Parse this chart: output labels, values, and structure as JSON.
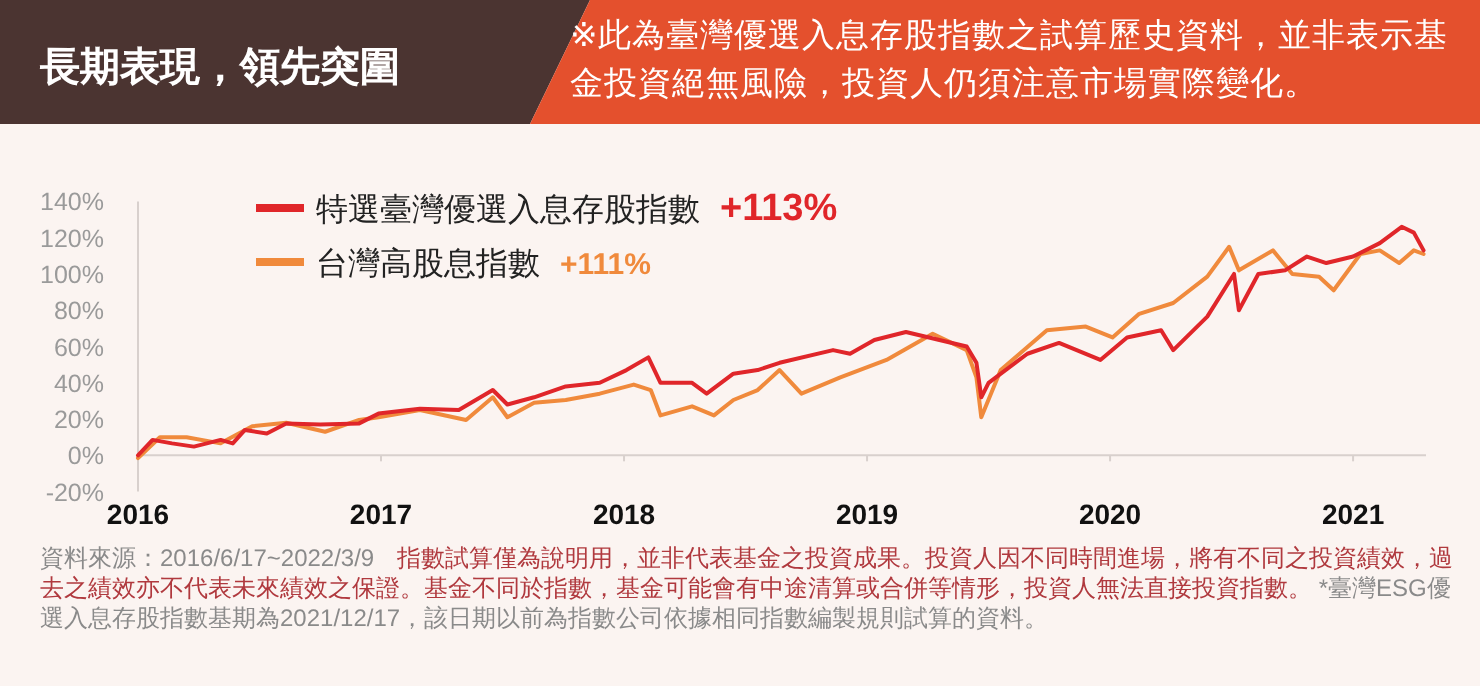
{
  "chart_data": {
    "type": "line",
    "title": "長期表現，領先突圍",
    "subtitle": "※此為臺灣優選入息存股指數之試算歷史資料，並非表示基金投資絕無風險，投資人仍須注意市場實際變化。",
    "annotations": [
      "+113%",
      "+111%",
      "資料來源：2016/6/17~2022/3/9",
      "指數試算僅為說明用，並非代表基金之投資成果。投資人因不同時間進場，將有不同之投資績效，過去之績效亦不代表未來績效之保證。基金不同於指數，基金可能會有中途清算或合併等情形，投資人無法直接投資指數。",
      "*臺灣ESG優選入息存股指數基期為2021/12/17，該日期以前為指數公司依據相同指數編製規則試算的資料。"
    ],
    "xlim": [
      2016,
      2021.3
    ],
    "xticks": [
      2016,
      2017,
      2018,
      2019,
      2020,
      2021
    ],
    "ylim": [
      -20,
      140
    ],
    "yticks": [
      {
        "value": -20,
        "label": "-20%"
      },
      {
        "value": 0,
        "label": "0%"
      },
      {
        "value": 20,
        "label": "20%"
      },
      {
        "value": 40,
        "label": "40%"
      },
      {
        "value": 60,
        "label": "60%"
      },
      {
        "value": 80,
        "label": "80%"
      },
      {
        "value": 100,
        "label": "100%"
      },
      {
        "value": 120,
        "label": "120%"
      },
      {
        "value": 140,
        "label": "140%"
      }
    ],
    "legend": "top left",
    "series": [
      {
        "name": "特選臺灣優選入息存股指數",
        "color": "#e0262a",
        "x": [
          2016.0,
          2016.06,
          2016.14,
          2016.23,
          2016.34,
          2016.39,
          2016.44,
          2016.53,
          2016.61,
          2016.75,
          2016.91,
          2016.99,
          2017.16,
          2017.32,
          2017.46,
          2017.52,
          2017.63,
          2017.76,
          2017.9,
          2018.01,
          2018.1,
          2018.15,
          2018.28,
          2018.34,
          2018.45,
          2018.55,
          2018.64,
          2018.86,
          2018.93,
          2019.03,
          2019.16,
          2019.41,
          2019.45,
          2019.47,
          2019.5,
          2019.66,
          2019.79,
          2019.96,
          2020.07,
          2020.21,
          2020.26,
          2020.4,
          2020.51,
          2020.53,
          2020.61,
          2020.72,
          2020.81,
          2020.89,
          2021.0,
          2021.11,
          2021.2,
          2021.25,
          2021.29
        ],
        "values": [
          0,
          8.5,
          6.6,
          4.8,
          8.5,
          6.6,
          14,
          12,
          17.6,
          17,
          17.6,
          23,
          25.7,
          25,
          36,
          28,
          32,
          38,
          40,
          47,
          54,
          40,
          40,
          34,
          45,
          47,
          51,
          58,
          56,
          63.6,
          68,
          60,
          51,
          32,
          40,
          56,
          62,
          52.6,
          65,
          69,
          58,
          76.5,
          100,
          80,
          100,
          102,
          109.6,
          106,
          109.6,
          117,
          126,
          122.8,
          113
        ]
      },
      {
        "name": "台灣高股息指數",
        "color": "#f08a3c",
        "x": [
          2016.0,
          2016.09,
          2016.2,
          2016.34,
          2016.47,
          2016.61,
          2016.77,
          2016.91,
          2016.99,
          2017.16,
          2017.35,
          2017.46,
          2017.52,
          2017.63,
          2017.76,
          2017.9,
          2018.04,
          2018.11,
          2018.15,
          2018.28,
          2018.37,
          2018.45,
          2018.55,
          2018.64,
          2018.73,
          2018.89,
          2019.08,
          2019.27,
          2019.41,
          2019.45,
          2019.47,
          2019.55,
          2019.74,
          2019.9,
          2020.01,
          2020.12,
          2020.26,
          2020.4,
          2020.49,
          2020.53,
          2020.67,
          2020.75,
          2020.86,
          2020.92,
          2021.03,
          2021.11,
          2021.19,
          2021.25,
          2021.29
        ],
        "values": [
          -1.5,
          10,
          10,
          6.6,
          16,
          18,
          13,
          19.5,
          21,
          25,
          19.5,
          32,
          21,
          29,
          30.5,
          34,
          39,
          36,
          22,
          27,
          22,
          30.5,
          36,
          47,
          34,
          43,
          52.6,
          67,
          58,
          43,
          21,
          47,
          69,
          71,
          65,
          78,
          84,
          98.5,
          115,
          102,
          113,
          100,
          98.5,
          91,
          111,
          113,
          106,
          113,
          111
        ]
      }
    ]
  }
}
